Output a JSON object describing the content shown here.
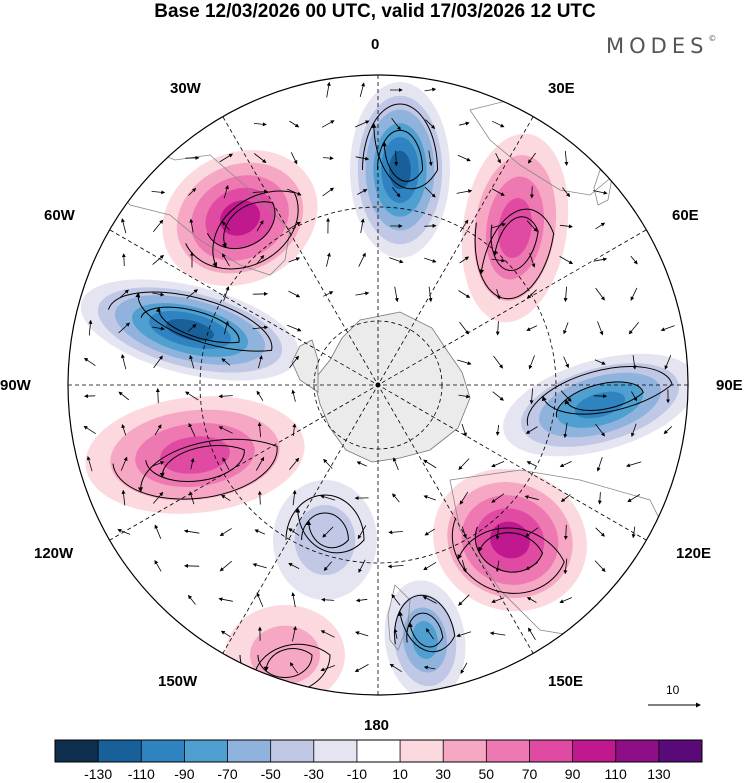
{
  "title": "Base 12/03/2026 00 UTC, valid 17/03/2026 12 UTC",
  "brand": "MODES",
  "brand_mark": "©",
  "longitude_labels": {
    "l0": "0",
    "l30e": "30E",
    "l60e": "60E",
    "l90e": "90E",
    "l120e": "120E",
    "l150e": "150E",
    "l180": "180",
    "l150w": "150W",
    "l120w": "120W",
    "l90w": "90W",
    "l60w": "60W",
    "l30w": "30W"
  },
  "reference_vector": {
    "label": "10",
    "magnitude": 10
  },
  "colorbar": {
    "ticks": [
      "-130",
      "-110",
      "-90",
      "-70",
      "-50",
      "-30",
      "-10",
      "10",
      "30",
      "50",
      "70",
      "90",
      "110",
      "130"
    ],
    "colors": [
      "#0d2e4d",
      "#17609a",
      "#2f83c0",
      "#4f9fd0",
      "#8fb3dc",
      "#c0c8e5",
      "#e5e5f2",
      "#ffffff",
      "#fbd9df",
      "#f6a7c3",
      "#ee78b1",
      "#e04aa3",
      "#c0198f",
      "#8d0e86",
      "#5a0a78"
    ]
  },
  "anomalies": [
    {
      "id": "a1",
      "value": -110
    },
    {
      "id": "a2",
      "value": 95
    },
    {
      "id": "a3",
      "value": -120
    },
    {
      "id": "a4",
      "value": 75
    },
    {
      "id": "a5",
      "value": -45
    },
    {
      "id": "a6",
      "value": -80
    },
    {
      "id": "a7",
      "value": 35
    },
    {
      "id": "a8",
      "value": 100
    },
    {
      "id": "a9",
      "value": -90
    },
    {
      "id": "a10",
      "value": 80
    }
  ]
}
